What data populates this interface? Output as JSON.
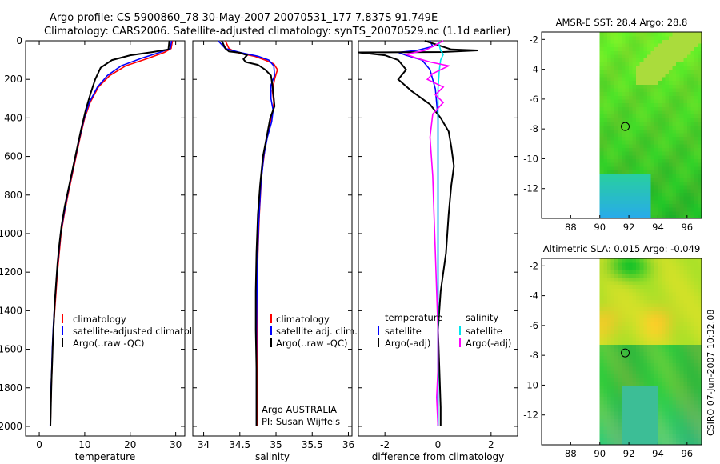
{
  "header": {
    "line1": "Argo profile: CS 5900860_78 30-May-2007 20070531_177 7.837S 91.749E",
    "line2": "Climatology: CARS2006. Satellite-adjusted climatology: synTS_20070529.nc (1.1d earlier)"
  },
  "side_label": "CSIRO 07-Jun-2007 10:32:08",
  "colors": {
    "red": "#ff0000",
    "blue": "#0000ff",
    "black": "#000000",
    "cyan": "#00e5ee",
    "magenta": "#ff00ff"
  },
  "chart_data": [
    {
      "type": "line",
      "id": "temperature",
      "xlabel": "temperature",
      "ylabel": "",
      "xlim": [
        -3,
        32
      ],
      "ylim": [
        2050,
        0
      ],
      "xticks": [
        0,
        10,
        20,
        30
      ],
      "yticks": [
        0,
        200,
        400,
        600,
        800,
        1000,
        1200,
        1400,
        1600,
        1800,
        2000
      ],
      "legend": [
        "climatology",
        "satellite-adjusted climatolog",
        "Argo(..raw -QC)"
      ],
      "series": [
        {
          "name": "climatology",
          "color": "red",
          "points": [
            [
              29.3,
              0
            ],
            [
              29,
              40
            ],
            [
              27.5,
              60
            ],
            [
              24,
              90
            ],
            [
              19,
              130
            ],
            [
              15.5,
              180
            ],
            [
              13,
              240
            ],
            [
              11.2,
              320
            ],
            [
              10,
              400
            ],
            [
              9,
              500
            ],
            [
              8.1,
              600
            ],
            [
              7.2,
              700
            ],
            [
              6.3,
              800
            ],
            [
              5.5,
              900
            ],
            [
              4.8,
              1000
            ],
            [
              4.4,
              1100
            ],
            [
              4,
              1200
            ],
            [
              3.7,
              1300
            ],
            [
              3.4,
              1400
            ],
            [
              3.1,
              1500
            ],
            [
              2.9,
              1600
            ],
            [
              2.8,
              1700
            ],
            [
              2.65,
              1800
            ],
            [
              2.55,
              1900
            ],
            [
              2.45,
              2000
            ]
          ]
        },
        {
          "name": "satellite-adjusted climatology",
          "color": "blue",
          "points": [
            [
              29.1,
              0
            ],
            [
              28.8,
              40
            ],
            [
              26.5,
              60
            ],
            [
              22.5,
              90
            ],
            [
              18,
              130
            ],
            [
              15,
              180
            ],
            [
              12.8,
              240
            ],
            [
              11,
              320
            ],
            [
              9.9,
              400
            ],
            [
              8.9,
              500
            ],
            [
              8,
              600
            ],
            [
              7.1,
              700
            ],
            [
              6.2,
              800
            ],
            [
              5.4,
              900
            ],
            [
              4.7,
              1000
            ],
            [
              4.3,
              1100
            ],
            [
              3.9,
              1200
            ],
            [
              3.6,
              1300
            ],
            [
              3.3,
              1400
            ],
            [
              3.05,
              1500
            ],
            [
              2.85,
              1600
            ],
            [
              2.75,
              1700
            ],
            [
              2.6,
              1800
            ],
            [
              2.5,
              1900
            ],
            [
              2.4,
              2000
            ]
          ]
        },
        {
          "name": "Argo(..raw -QC)",
          "color": "black",
          "points": [
            [
              28.6,
              0
            ],
            [
              28.4,
              45
            ],
            [
              25,
              58
            ],
            [
              20,
              75
            ],
            [
              16,
              100
            ],
            [
              13.5,
              140
            ],
            [
              12.3,
              200
            ],
            [
              11.2,
              280
            ],
            [
              10.2,
              360
            ],
            [
              9.2,
              460
            ],
            [
              8.3,
              560
            ],
            [
              7.4,
              660
            ],
            [
              6.5,
              760
            ],
            [
              5.6,
              860
            ],
            [
              4.9,
              960
            ],
            [
              4.4,
              1060
            ],
            [
              4,
              1160
            ],
            [
              3.7,
              1260
            ],
            [
              3.4,
              1360
            ],
            [
              3.2,
              1460
            ],
            [
              3,
              1560
            ],
            [
              2.85,
              1660
            ],
            [
              2.7,
              1760
            ],
            [
              2.6,
              1860
            ],
            [
              2.5,
              1950
            ],
            [
              2.45,
              2000
            ]
          ]
        }
      ]
    },
    {
      "type": "line",
      "id": "salinity",
      "xlabel": "salinity",
      "ylabel": "",
      "xlim": [
        33.85,
        36.05
      ],
      "ylim": [
        2050,
        0
      ],
      "xticks": [
        34,
        34.5,
        35,
        35.5,
        36
      ],
      "yticks": [
        0,
        200,
        400,
        600,
        800,
        1000,
        1200,
        1400,
        1600,
        1800,
        2000
      ],
      "legend": [
        "climatology",
        "satellite adj. clim.",
        "Argo(..raw -QC)"
      ],
      "annotation": [
        "Argo AUSTRALIA",
        "PI: Susan Wijffels"
      ],
      "series": [
        {
          "name": "climatology",
          "color": "red",
          "points": [
            [
              34.3,
              0
            ],
            [
              34.35,
              40
            ],
            [
              34.45,
              60
            ],
            [
              34.7,
              80
            ],
            [
              34.85,
              100
            ],
            [
              34.97,
              120
            ],
            [
              35.02,
              150
            ],
            [
              34.98,
              200
            ],
            [
              34.95,
              260
            ],
            [
              34.97,
              320
            ],
            [
              34.95,
              380
            ],
            [
              34.9,
              450
            ],
            [
              34.85,
              550
            ],
            [
              34.8,
              700
            ],
            [
              34.77,
              900
            ],
            [
              34.75,
              1100
            ],
            [
              34.74,
              1300
            ],
            [
              34.74,
              1600
            ],
            [
              34.74,
              2000
            ]
          ]
        },
        {
          "name": "satellite adj. clim.",
          "color": "blue",
          "points": [
            [
              34.2,
              0
            ],
            [
              34.3,
              40
            ],
            [
              34.5,
              60
            ],
            [
              34.75,
              80
            ],
            [
              34.9,
              100
            ],
            [
              34.97,
              130
            ],
            [
              34.98,
              180
            ],
            [
              34.93,
              230
            ],
            [
              34.93,
              300
            ],
            [
              34.96,
              360
            ],
            [
              34.94,
              420
            ],
            [
              34.88,
              500
            ],
            [
              34.83,
              600
            ],
            [
              34.79,
              750
            ],
            [
              34.76,
              950
            ],
            [
              34.74,
              1200
            ],
            [
              34.73,
              1500
            ],
            [
              34.73,
              1800
            ],
            [
              34.73,
              2000
            ]
          ]
        },
        {
          "name": "Argo(..raw -QC)",
          "color": "black",
          "points": [
            [
              34.25,
              0
            ],
            [
              34.3,
              40
            ],
            [
              34.35,
              55
            ],
            [
              34.5,
              62
            ],
            [
              34.6,
              75
            ],
            [
              34.55,
              95
            ],
            [
              34.58,
              110
            ],
            [
              34.75,
              125
            ],
            [
              34.85,
              150
            ],
            [
              34.93,
              180
            ],
            [
              34.95,
              230
            ],
            [
              34.97,
              300
            ],
            [
              34.98,
              340
            ],
            [
              34.92,
              400
            ],
            [
              34.87,
              500
            ],
            [
              34.82,
              600
            ],
            [
              34.78,
              750
            ],
            [
              34.75,
              900
            ],
            [
              34.73,
              1100
            ],
            [
              34.72,
              1300
            ],
            [
              34.72,
              1500
            ],
            [
              34.73,
              1700
            ],
            [
              34.73,
              2000
            ]
          ]
        }
      ]
    },
    {
      "type": "line",
      "id": "difference",
      "xlabel": "difference from climatology",
      "ylabel": "",
      "xlim": [
        -3,
        3
      ],
      "ylim": [
        2050,
        0
      ],
      "xticks": [
        -2,
        0,
        2
      ],
      "yticks": [
        0,
        200,
        400,
        600,
        800,
        1000,
        1200,
        1400,
        1600,
        1800,
        2000
      ],
      "legend_temperature": {
        "heading": "temperature",
        "items": [
          "satellite",
          "Argo(-adj)"
        ]
      },
      "legend_salinity": {
        "heading": "salinity",
        "items": [
          "satellite",
          "Argo(-adj)"
        ]
      },
      "series": [
        {
          "name": "temperature satellite",
          "color": "blue",
          "points": [
            [
              -0.3,
              0
            ],
            [
              -0.2,
              30
            ],
            [
              -0.8,
              50
            ],
            [
              -1.5,
              60
            ],
            [
              -1.2,
              75
            ],
            [
              -0.6,
              100
            ],
            [
              -0.3,
              150
            ],
            [
              -0.1,
              250
            ],
            [
              0,
              400
            ],
            [
              0,
              700
            ],
            [
              0,
              1200
            ],
            [
              0,
              1700
            ],
            [
              0,
              2000
            ]
          ]
        },
        {
          "name": "temperature Argo(-adj)",
          "color": "black",
          "points": [
            [
              -0.5,
              0
            ],
            [
              0.5,
              45
            ],
            [
              1.5,
              50
            ],
            [
              0.2,
              58
            ],
            [
              -3,
              60
            ],
            [
              -2,
              75
            ],
            [
              -1.5,
              100
            ],
            [
              -1.2,
              150
            ],
            [
              -1.5,
              200
            ],
            [
              -1,
              260
            ],
            [
              -0.3,
              330
            ],
            [
              0.1,
              400
            ],
            [
              0.4,
              470
            ],
            [
              0.5,
              550
            ],
            [
              0.6,
              650
            ],
            [
              0.5,
              750
            ],
            [
              0.4,
              900
            ],
            [
              0.3,
              1100
            ],
            [
              0.1,
              1300
            ],
            [
              0,
              1500
            ],
            [
              0.05,
              1700
            ],
            [
              0.1,
              1900
            ],
            [
              0.1,
              2000
            ]
          ]
        },
        {
          "name": "salinity satellite",
          "color": "cyan",
          "points": [
            [
              0,
              0
            ],
            [
              0.1,
              50
            ],
            [
              0.2,
              70
            ],
            [
              0.1,
              100
            ],
            [
              0.05,
              150
            ],
            [
              0,
              250
            ],
            [
              0,
              400
            ],
            [
              0,
              700
            ],
            [
              0,
              1000
            ],
            [
              0,
              1500
            ],
            [
              0,
              1800
            ],
            [
              0,
              2000
            ]
          ]
        },
        {
          "name": "salinity Argo(-adj)",
          "color": "magenta",
          "points": [
            [
              0.2,
              0
            ],
            [
              -0.2,
              30
            ],
            [
              -0.5,
              50
            ],
            [
              -1.2,
              70
            ],
            [
              -0.8,
              90
            ],
            [
              -0.3,
              110
            ],
            [
              0.4,
              130
            ],
            [
              -0.2,
              170
            ],
            [
              -0.4,
              200
            ],
            [
              0.2,
              240
            ],
            [
              -0.1,
              280
            ],
            [
              0.2,
              320
            ],
            [
              -0.2,
              380
            ],
            [
              -0.3,
              500
            ],
            [
              -0.2,
              700
            ],
            [
              -0.15,
              900
            ],
            [
              -0.1,
              1100
            ],
            [
              -0.05,
              1300
            ],
            [
              0,
              1500
            ],
            [
              0,
              1700
            ],
            [
              -0.05,
              1850
            ],
            [
              0,
              2000
            ]
          ]
        }
      ]
    },
    {
      "type": "heatmap",
      "id": "sst",
      "title": "AMSR-E SST: 28.4 Argo: 28.8",
      "xlim": [
        86,
        97
      ],
      "ylim": [
        -14,
        -1.5
      ],
      "xticks": [
        88,
        90,
        92,
        94,
        96
      ],
      "yticks": [
        -2,
        -4,
        -6,
        -8,
        -10,
        -12
      ],
      "data_xlim": [
        90,
        97
      ],
      "marker": [
        91.749,
        -7.837
      ]
    },
    {
      "type": "heatmap",
      "id": "sla",
      "title": "Altimetric SLA: 0.015 Argo: -0.049",
      "xlim": [
        86,
        97
      ],
      "ylim": [
        -14,
        -1.5
      ],
      "xticks": [
        88,
        90,
        92,
        94,
        96
      ],
      "yticks": [
        -2,
        -4,
        -6,
        -8,
        -10,
        -12
      ],
      "data_xlim": [
        90,
        97
      ],
      "marker": [
        91.749,
        -7.837
      ]
    }
  ]
}
